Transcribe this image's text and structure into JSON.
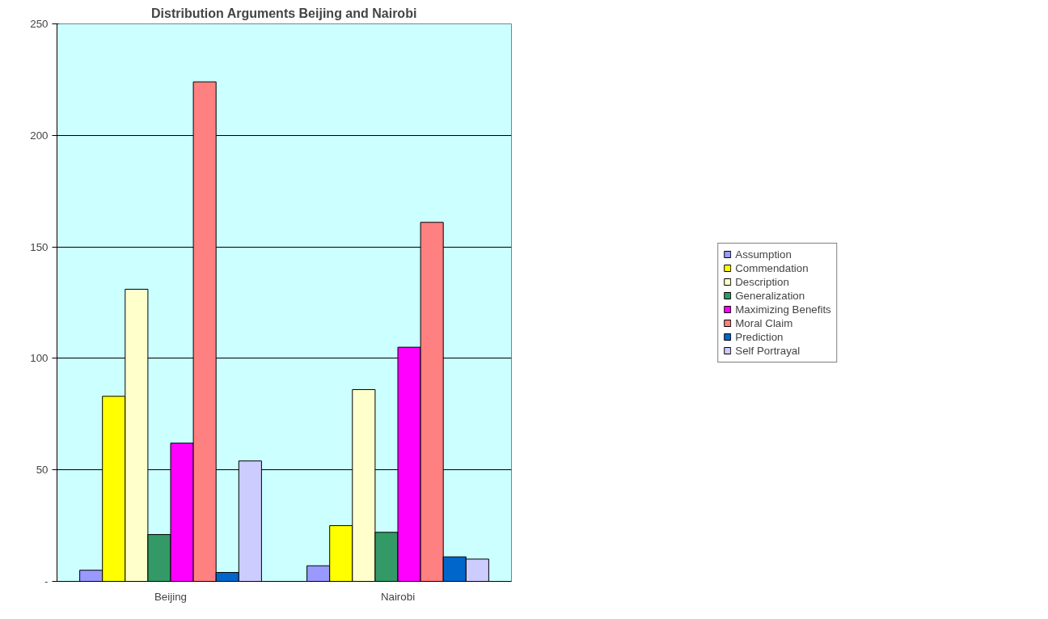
{
  "chart_data": {
    "type": "bar",
    "title": "Distribution Arguments Beijing and Nairobi",
    "categories": [
      "Beijing",
      "Nairobi"
    ],
    "series": [
      {
        "name": "Assumption",
        "color": "#9999ff",
        "values": [
          5,
          7
        ]
      },
      {
        "name": "Commendation",
        "color": "#ffff00",
        "values": [
          83,
          25
        ]
      },
      {
        "name": "Description",
        "color": "#ffffcc",
        "values": [
          131,
          86
        ]
      },
      {
        "name": "Generalization",
        "color": "#339966",
        "values": [
          21,
          22
        ]
      },
      {
        "name": "Maximizing Benefits",
        "color": "#ff00ff",
        "values": [
          62,
          105
        ]
      },
      {
        "name": "Moral Claim",
        "color": "#ff8080",
        "values": [
          224,
          161
        ]
      },
      {
        "name": "Prediction",
        "color": "#0066cc",
        "values": [
          4,
          11
        ]
      },
      {
        "name": "Self Portrayal",
        "color": "#ccccff",
        "values": [
          54,
          10
        ]
      }
    ],
    "ylim": [
      0,
      250
    ],
    "yticks": [
      {
        "value": 0,
        "label": "-"
      },
      50,
      100,
      150,
      200,
      250
    ],
    "grid": "y",
    "legend": "right"
  }
}
